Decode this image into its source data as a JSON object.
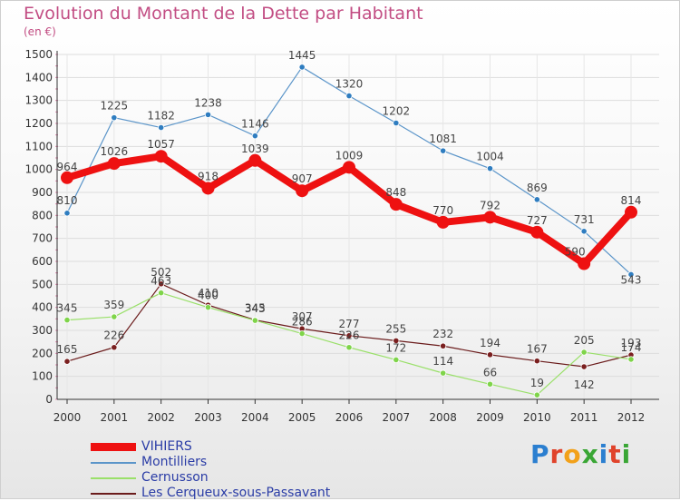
{
  "title": "Evolution du Montant de la Dette par Habitant",
  "subtitle": "(en €)",
  "logo_text": "Proxiti",
  "chart_data": {
    "type": "line",
    "title": "Evolution du Montant de la Dette par Habitant",
    "ylabel": "(en €)",
    "xlabel": "",
    "x": [
      "2000",
      "2001",
      "2002",
      "2003",
      "2004",
      "2005",
      "2006",
      "2007",
      "2008",
      "2009",
      "2010",
      "2011",
      "2012"
    ],
    "ylim": [
      0,
      1500
    ],
    "yticks": [
      0,
      100,
      200,
      300,
      400,
      500,
      600,
      700,
      800,
      900,
      1000,
      1100,
      1200,
      1300,
      1400,
      1500
    ],
    "grid": true,
    "legend_position": "bottom-left",
    "series": [
      {
        "name": "VIHIERS",
        "color": "#ee1111",
        "values": [
          964,
          1026,
          1057,
          918,
          1039,
          907,
          1009,
          848,
          770,
          792,
          727,
          590,
          814
        ]
      },
      {
        "name": "Montilliers",
        "color": "#5b95c9",
        "values": [
          810,
          1225,
          1182,
          1238,
          1146,
          1445,
          1320,
          1202,
          1081,
          1004,
          869,
          731,
          543
        ]
      },
      {
        "name": "Cernusson",
        "color": "#9ae06a",
        "values": [
          345,
          359,
          463,
          400,
          343,
          286,
          226,
          172,
          114,
          66,
          19,
          205,
          174
        ]
      },
      {
        "name": "Les Cerqueux-sous-Passavant",
        "color": "#6b1c1c",
        "values": [
          165,
          226,
          502,
          410,
          345,
          307,
          277,
          255,
          232,
          194,
          167,
          142,
          193
        ]
      }
    ]
  }
}
